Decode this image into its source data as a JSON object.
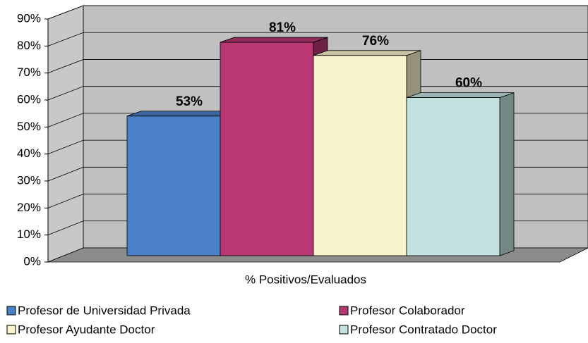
{
  "chart_data": {
    "type": "bar",
    "x_label": "% Positivos/Evaluados",
    "series": [
      {
        "name": "Profesor de Universidad Privada",
        "color": "#4a80c6",
        "values": [
          53
        ],
        "value_labels": [
          "53%"
        ]
      },
      {
        "name": "Profesor Colaborador",
        "color": "#b93773",
        "values": [
          81
        ],
        "value_labels": [
          "81%"
        ]
      },
      {
        "name": "Profesor Ayudante Doctor",
        "color": "#f8f2cc",
        "values": [
          76
        ],
        "value_labels": [
          "76%"
        ]
      },
      {
        "name": "Profesor Contratado Doctor",
        "color": "#c2e2e0",
        "values": [
          60
        ],
        "value_labels": [
          "60%"
        ]
      }
    ],
    "ylim": [
      0,
      90
    ],
    "yticks": [
      {
        "value": 0,
        "label": "0%"
      },
      {
        "value": 10,
        "label": "10%"
      },
      {
        "value": 20,
        "label": "20%"
      },
      {
        "value": 30,
        "label": "30%"
      },
      {
        "value": 40,
        "label": "40%"
      },
      {
        "value": 50,
        "label": "50%"
      },
      {
        "value": 60,
        "label": "60%"
      },
      {
        "value": 70,
        "label": "70%"
      },
      {
        "value": 80,
        "label": "80%"
      },
      {
        "value": 90,
        "label": "90%"
      }
    ],
    "grid": true
  }
}
